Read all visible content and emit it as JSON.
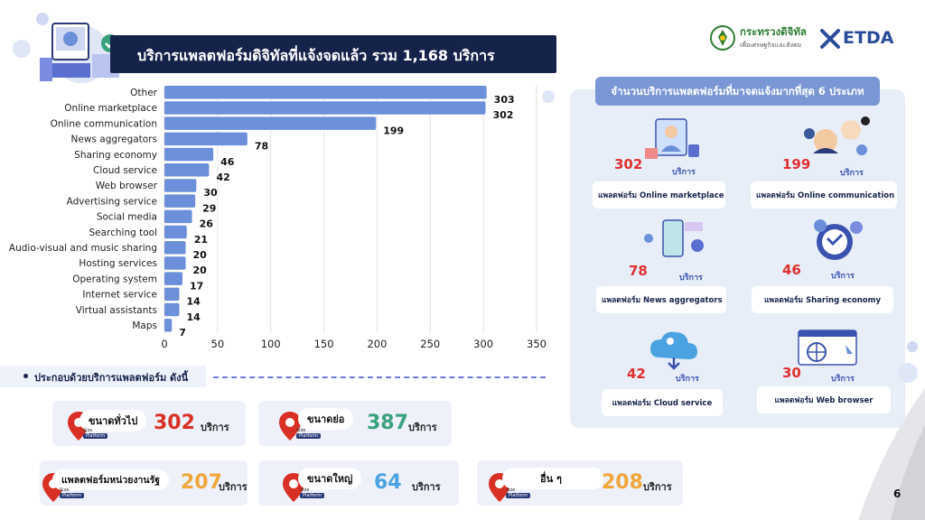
{
  "header": {
    "title": "บริการแพลตฟอร์มดิจิทัลที่แจ้งจดแล้ว รวม  1,168 บริการ",
    "logos": {
      "ministry_name": "กระทรวงดิจิทัล",
      "ministry_sub": "เพื่อเศรษฐกิจและสังคม",
      "agency": "ETDA"
    }
  },
  "chart_data": {
    "type": "bar",
    "orientation": "horizontal",
    "categories": [
      "Other",
      "Online marketplace",
      "Online communication",
      "News aggregators",
      "Sharing economy",
      "Cloud service",
      "Web browser",
      "Advertising service",
      "Social media",
      "Searching tool",
      "Audio-visual and music sharing",
      "Hosting services",
      "Operating system",
      "Internet service",
      "Virtual assistants",
      "Maps"
    ],
    "values": [
      303,
      302,
      199,
      78,
      46,
      42,
      30,
      29,
      26,
      21,
      20,
      20,
      17,
      14,
      14,
      7
    ],
    "value_labels": [
      "303",
      "302",
      "199",
      "78",
      "46",
      "42",
      "30",
      "29",
      "26",
      "21",
      "20",
      "20",
      "17",
      "14",
      "14",
      "7"
    ],
    "xlim": [
      0,
      350
    ],
    "xticks": [
      "0",
      "50",
      "100",
      "150",
      "200",
      "250",
      "300",
      "350"
    ],
    "grid": true,
    "bar_color": "#6b8fd8"
  },
  "compose": {
    "label": "ประกอบด้วยบริการแพลตฟอร์ม  ดังนี้"
  },
  "size_cards": [
    {
      "label": "ขนาดทั่วไป",
      "value": "302",
      "unit": "บริการ",
      "color": "#d93025"
    },
    {
      "label": "ขนาดย่อ",
      "value": "387",
      "unit": "บริการ",
      "color": "#3aa17e"
    },
    {
      "label": "แพลตฟอร์มหน่วยงานรัฐ",
      "value": "207",
      "unit": "บริการ",
      "color": "#f0a63b"
    },
    {
      "label": "ขนาดใหญ่",
      "value": "64",
      "unit": "บริการ",
      "color": "#4aa3e0"
    },
    {
      "label": "อื่น ๆ",
      "value": "208",
      "unit": "บริการ",
      "color": "#f0a63b"
    }
  ],
  "size_tag": {
    "line1": "Size",
    "line2": "Platform"
  },
  "top_types": {
    "header": "จำนวนบริการแพลตฟอร์มที่มาจดแจ้งมากที่สุด 6 ประเภท",
    "items": [
      {
        "value": "302",
        "unit": "บริการ",
        "label": "แพลตฟอร์ม Online marketplace"
      },
      {
        "value": "199",
        "unit": "บริการ",
        "label": "แพลตฟอร์ม Online communication"
      },
      {
        "value": "78",
        "unit": "บริการ",
        "label": "แพลตฟอร์ม News aggregators"
      },
      {
        "value": "46",
        "unit": "บริการ",
        "label": "แพลตฟอร์ม Sharing economy"
      },
      {
        "value": "42",
        "unit": "บริการ",
        "label": "แพลตฟอร์ม Cloud service"
      },
      {
        "value": "30",
        "unit": "บริการ",
        "label": "แพลตฟอร์ม Web browser"
      }
    ]
  },
  "page_number": "6"
}
